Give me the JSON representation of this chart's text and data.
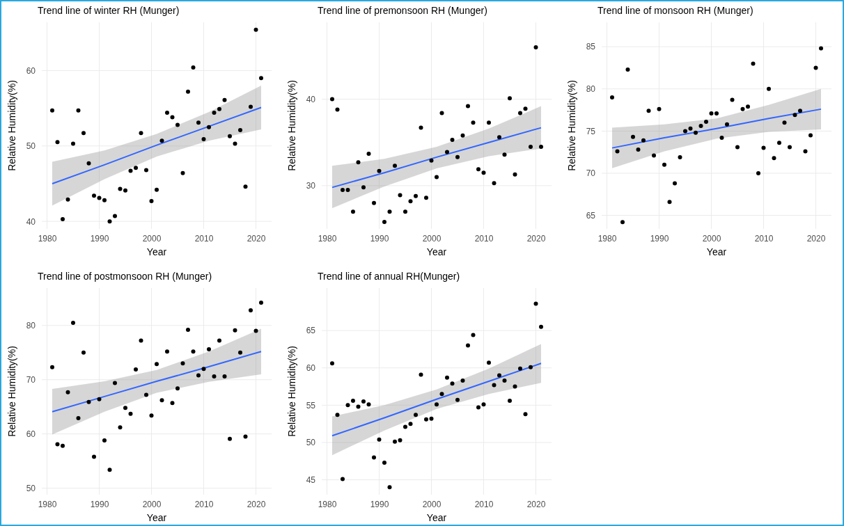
{
  "chart_data": [
    {
      "type": "scatter",
      "title": "Trend line of winter RH (Munger)",
      "xlabel": "Year",
      "ylabel": "Relative Humidity(%)",
      "xlim": [
        1979,
        2023
      ],
      "xticks": [
        1980,
        1990,
        2000,
        2010,
        2020
      ],
      "ylim": [
        39,
        66.4
      ],
      "yticks": [
        40,
        50,
        60
      ],
      "grid": true,
      "marker": "circle",
      "x": [
        1981,
        1982,
        1983,
        1984,
        1985,
        1986,
        1987,
        1988,
        1989,
        1990,
        1991,
        1992,
        1993,
        1994,
        1995,
        1996,
        1997,
        1998,
        1999,
        2000,
        2001,
        2002,
        2003,
        2004,
        2005,
        2006,
        2007,
        2008,
        2009,
        2010,
        2011,
        2012,
        2013,
        2014,
        2015,
        2016,
        2017,
        2018,
        2019,
        2020,
        2021
      ],
      "series": [
        {
          "color": "#000000",
          "values": [
            54.7,
            50.5,
            40.3,
            42.9,
            50.3,
            54.7,
            51.7,
            47.7,
            43.4,
            43.1,
            42.8,
            40.0,
            40.7,
            44.3,
            44.1,
            46.7,
            47.1,
            51.7,
            46.8,
            42.7,
            44.2,
            50.7,
            54.4,
            53.8,
            52.8,
            46.4,
            57.2,
            60.4,
            53.1,
            50.9,
            52.5,
            54.4,
            54.9,
            56.1,
            51.3,
            50.3,
            52.1,
            44.6,
            55.2,
            65.4,
            59.0
          ]
        },
        {
          "type": "line",
          "marker": "none",
          "color": "#3366ff",
          "x": [
            1981,
            1991,
            2001,
            2011,
            2021
          ],
          "values": [
            45.0,
            47.5,
            50.1,
            52.6,
            55.1
          ],
          "lower": [
            42.1,
            45.6,
            48.6,
            50.7,
            52.2
          ],
          "upper": [
            47.9,
            49.4,
            51.6,
            54.5,
            58.0
          ]
        }
      ]
    },
    {
      "type": "scatter",
      "title": "Trend line of premonsoon RH (Munger)",
      "xlabel": "Year",
      "ylabel": "Relative Humidity(%)",
      "xlim": [
        1979,
        2023
      ],
      "xticks": [
        1980,
        1990,
        2000,
        2010,
        2020
      ],
      "ylim": [
        25,
        48.9
      ],
      "yticks": [
        30,
        40
      ],
      "grid": true,
      "marker": "circle",
      "x": [
        1981,
        1982,
        1983,
        1984,
        1985,
        1986,
        1987,
        1988,
        1989,
        1990,
        1991,
        1992,
        1993,
        1994,
        1995,
        1996,
        1997,
        1998,
        1999,
        2000,
        2001,
        2002,
        2003,
        2004,
        2005,
        2006,
        2007,
        2008,
        2009,
        2010,
        2011,
        2012,
        2013,
        2014,
        2015,
        2016,
        2017,
        2018,
        2019,
        2020,
        2021
      ],
      "series": [
        {
          "color": "#000000",
          "values": [
            40.0,
            38.8,
            29.5,
            29.5,
            27.0,
            32.7,
            29.8,
            33.7,
            28.0,
            31.7,
            25.8,
            27.0,
            32.3,
            28.9,
            27.0,
            28.2,
            28.8,
            36.7,
            28.6,
            32.9,
            31.0,
            38.4,
            33.9,
            35.3,
            33.3,
            35.8,
            39.2,
            37.3,
            31.9,
            31.5,
            37.3,
            30.3,
            35.6,
            33.6,
            40.1,
            31.3,
            38.4,
            38.9,
            34.5,
            46.0,
            34.5
          ]
        },
        {
          "type": "line",
          "marker": "none",
          "color": "#3366ff",
          "x": [
            1981,
            1991,
            2001,
            2011,
            2021
          ],
          "values": [
            29.8,
            31.5,
            33.3,
            35.0,
            36.7
          ],
          "lower": [
            27.4,
            29.9,
            32.0,
            33.4,
            34.3
          ],
          "upper": [
            32.3,
            33.1,
            34.5,
            36.6,
            39.2
          ]
        }
      ]
    },
    {
      "type": "scatter",
      "title": "Trend line of monsoon RH (Munger)",
      "xlabel": "Year",
      "ylabel": "Relative Humidity(%)",
      "xlim": [
        1979,
        2023
      ],
      "xticks": [
        1980,
        1990,
        2000,
        2010,
        2020
      ],
      "ylim": [
        63.4,
        87.9
      ],
      "yticks": [
        65,
        70,
        75,
        80,
        85
      ],
      "grid": true,
      "marker": "circle",
      "x": [
        1981,
        1982,
        1983,
        1984,
        1985,
        1986,
        1987,
        1988,
        1989,
        1990,
        1991,
        1992,
        1993,
        1994,
        1995,
        1996,
        1997,
        1998,
        1999,
        2000,
        2001,
        2002,
        2003,
        2004,
        2005,
        2006,
        2007,
        2008,
        2009,
        2010,
        2011,
        2012,
        2013,
        2014,
        2015,
        2016,
        2017,
        2018,
        2019,
        2020,
        2021
      ],
      "series": [
        {
          "color": "#000000",
          "values": [
            79.0,
            72.6,
            64.2,
            82.3,
            74.3,
            72.8,
            73.9,
            77.4,
            72.1,
            77.6,
            71.0,
            66.6,
            68.8,
            71.9,
            75.0,
            75.3,
            74.8,
            75.6,
            76.1,
            77.1,
            77.1,
            74.2,
            75.8,
            78.7,
            73.1,
            77.6,
            77.9,
            83.0,
            70.0,
            73.0,
            80.0,
            71.8,
            73.6,
            76.0,
            73.1,
            76.9,
            77.4,
            72.6,
            74.5,
            82.5,
            84.8
          ]
        },
        {
          "type": "line",
          "marker": "none",
          "color": "#3366ff",
          "x": [
            1981,
            1991,
            2001,
            2011,
            2021
          ],
          "values": [
            73.0,
            74.2,
            75.3,
            76.5,
            77.6
          ],
          "lower": [
            70.6,
            72.6,
            74.1,
            74.9,
            75.2
          ],
          "upper": [
            75.4,
            75.8,
            76.5,
            78.1,
            80.0
          ]
        }
      ]
    },
    {
      "type": "scatter",
      "title": "Trend line of postmonsoon RH (Munger)",
      "xlabel": "Year",
      "ylabel": "Relative Humidity(%)",
      "xlim": [
        1979,
        2023
      ],
      "xticks": [
        1980,
        1990,
        2000,
        2010,
        2020
      ],
      "ylim": [
        48.8,
        86.9
      ],
      "yticks": [
        50,
        60,
        70,
        80
      ],
      "grid": true,
      "marker": "circle",
      "x": [
        1981,
        1982,
        1983,
        1984,
        1985,
        1986,
        1987,
        1988,
        1989,
        1990,
        1991,
        1992,
        1993,
        1994,
        1995,
        1996,
        1997,
        1998,
        1999,
        2000,
        2001,
        2002,
        2003,
        2004,
        2005,
        2006,
        2007,
        2008,
        2009,
        2010,
        2011,
        2012,
        2013,
        2014,
        2015,
        2016,
        2017,
        2018,
        2019,
        2020,
        2021
      ],
      "series": [
        {
          "color": "#000000",
          "values": [
            72.3,
            58.1,
            57.8,
            67.7,
            80.5,
            62.9,
            75.0,
            65.9,
            55.8,
            66.4,
            58.8,
            53.4,
            69.4,
            61.2,
            64.8,
            63.7,
            71.9,
            77.2,
            67.2,
            63.4,
            72.9,
            66.2,
            75.2,
            65.7,
            68.4,
            73.0,
            79.2,
            75.2,
            70.8,
            72.0,
            75.6,
            70.6,
            77.2,
            70.6,
            59.1,
            79.1,
            75.0,
            59.5,
            82.8,
            79.0,
            84.2
          ]
        },
        {
          "type": "line",
          "marker": "none",
          "color": "#3366ff",
          "x": [
            1981,
            1991,
            2001,
            2011,
            2021
          ],
          "values": [
            64.1,
            66.9,
            69.7,
            72.4,
            75.2
          ],
          "lower": [
            59.9,
            64.1,
            67.6,
            69.6,
            71.0
          ],
          "upper": [
            68.3,
            69.7,
            71.8,
            75.2,
            79.4
          ]
        }
      ]
    },
    {
      "type": "scatter",
      "title": "Trend line of annual RH(Munger)",
      "xlabel": "Year",
      "ylabel": "Relative Humidity(%)",
      "xlim": [
        1979,
        2023
      ],
      "xticks": [
        1980,
        1990,
        2000,
        2010,
        2020
      ],
      "ylim": [
        43,
        70.7
      ],
      "yticks": [
        45,
        50,
        55,
        60,
        65
      ],
      "grid": true,
      "marker": "circle",
      "x": [
        1981,
        1982,
        1983,
        1984,
        1985,
        1986,
        1987,
        1988,
        1989,
        1990,
        1991,
        1992,
        1993,
        1994,
        1995,
        1996,
        1997,
        1998,
        1999,
        2000,
        2001,
        2002,
        2003,
        2004,
        2005,
        2006,
        2007,
        2008,
        2009,
        2010,
        2011,
        2012,
        2013,
        2014,
        2015,
        2016,
        2017,
        2018,
        2019,
        2020,
        2021
      ],
      "series": [
        {
          "color": "#000000",
          "values": [
            60.6,
            53.7,
            45.1,
            55.0,
            55.6,
            54.8,
            55.5,
            55.1,
            48.0,
            50.4,
            47.3,
            44.0,
            50.1,
            50.3,
            52.1,
            52.5,
            53.7,
            59.1,
            53.1,
            53.2,
            55.1,
            56.5,
            58.7,
            57.9,
            55.7,
            58.3,
            63.0,
            64.4,
            54.7,
            55.1,
            60.7,
            57.7,
            59.0,
            58.3,
            55.6,
            57.5,
            59.9,
            53.8,
            60.1,
            68.6,
            65.5
          ]
        },
        {
          "type": "line",
          "marker": "none",
          "color": "#3366ff",
          "x": [
            1981,
            1991,
            2001,
            2011,
            2021
          ],
          "values": [
            50.9,
            53.3,
            55.8,
            58.2,
            60.6
          ],
          "lower": [
            48.3,
            51.6,
            54.5,
            56.5,
            58.0
          ],
          "upper": [
            53.5,
            55.0,
            57.1,
            59.9,
            63.2
          ]
        }
      ]
    }
  ]
}
